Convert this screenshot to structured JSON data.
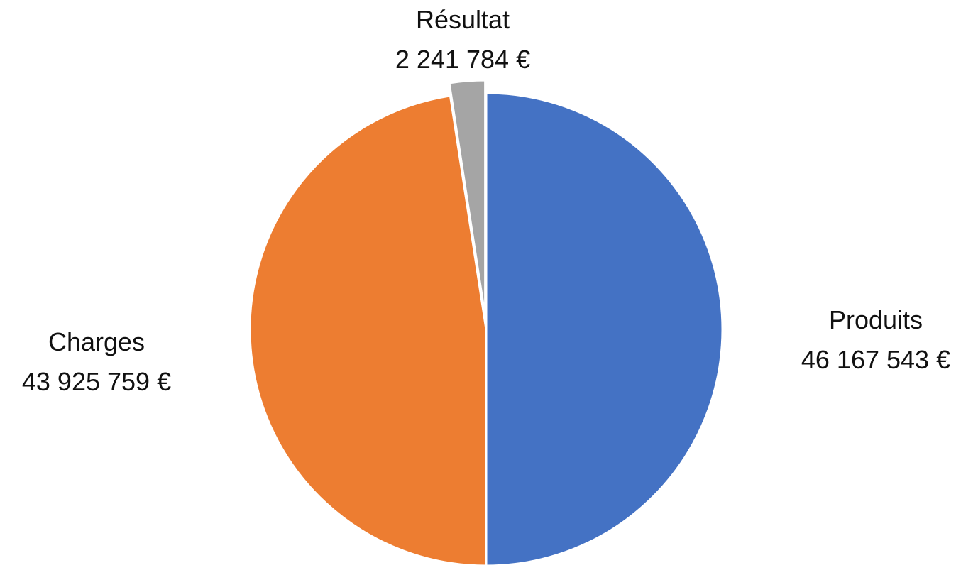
{
  "chart_data": {
    "type": "pie",
    "title": "",
    "categories": [
      "Produits",
      "Charges",
      "Résultat"
    ],
    "values": [
      46167543,
      43925759,
      2241784
    ],
    "value_labels": [
      "46 167 543 €",
      "43 925 759 €",
      "2 241 784 €"
    ],
    "colors": [
      "#4472C4",
      "#ED7D31",
      "#A5A5A5"
    ],
    "exploded": [
      "Résultat"
    ],
    "legend": "none",
    "data_labels": "outside"
  }
}
